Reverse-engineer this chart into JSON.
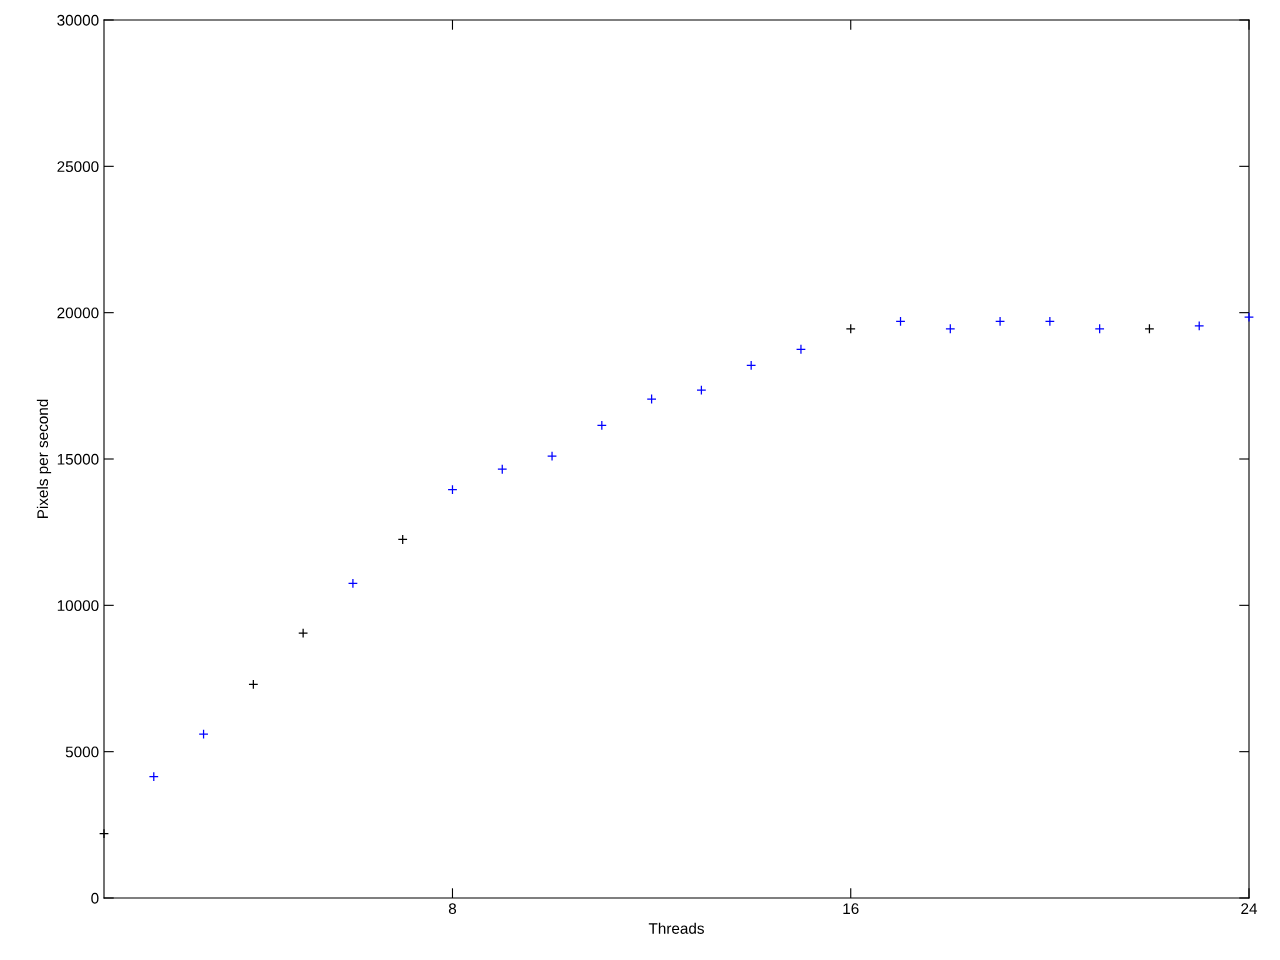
{
  "chart_data": {
    "type": "scatter",
    "xlabel": "Threads",
    "ylabel": "Pixels per second",
    "x": [
      1,
      2,
      3,
      4,
      5,
      6,
      7,
      8,
      9,
      10,
      11,
      12,
      13,
      14,
      15,
      16,
      17,
      18,
      19,
      20,
      21,
      22,
      23,
      24
    ],
    "values": [
      2200,
      4150,
      5600,
      7300,
      9050,
      10750,
      12250,
      13950,
      14650,
      15100,
      16150,
      17050,
      17350,
      18200,
      18750,
      19450,
      19700,
      19450,
      19700,
      19700,
      19450,
      19450,
      19550,
      19850
    ],
    "colors": [
      "#000000",
      "#0000ff",
      "#0000ff",
      "#000000",
      "#000000",
      "#0000ff",
      "#000000",
      "#0000ff",
      "#0000ff",
      "#0000ff",
      "#0000ff",
      "#0000ff",
      "#0000ff",
      "#0000ff",
      "#0000ff",
      "#000000",
      "#0000ff",
      "#0000ff",
      "#0000ff",
      "#0000ff",
      "#0000ff",
      "#000000",
      "#0000ff",
      "#0000ff"
    ],
    "marker": "cross",
    "xlim": [
      1,
      24
    ],
    "xticks": [
      8,
      16,
      24
    ],
    "ylim": [
      0,
      30000
    ],
    "yticks": [
      0,
      5000,
      10000,
      15000,
      20000,
      25000,
      30000
    ],
    "grid": false
  }
}
